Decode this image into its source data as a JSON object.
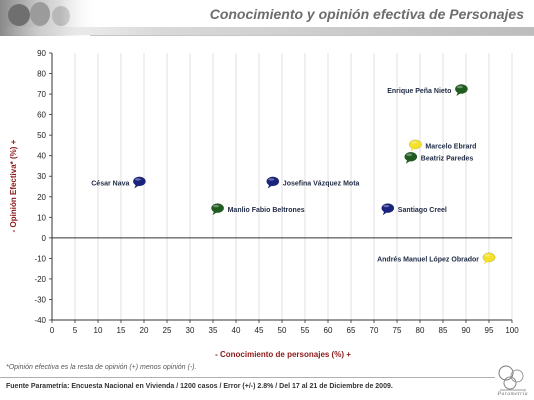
{
  "title": "Conocimiento y opinión efectiva de Personajes",
  "footnote": "*Opinión efectiva es la resta de opinión (+) menos opinión (-).",
  "source": "Fuente Parametría: Encuesta Nacional en Vivienda / 1200 casos / Error (+/-) 2.8% / Del 17 al 21 de Diciembre de 2009.",
  "logo_text": "Parametría",
  "colors": {
    "blue": "#1a237e",
    "green": "#1f5c1f",
    "yellow": "#f4e12a",
    "axis_label": "#8b1a1a",
    "grid": "#d4d4d4"
  },
  "chart_data": {
    "type": "scatter",
    "title": "Conocimiento y opinión efectiva de Personajes",
    "xlabel": "- Conocimiento de personajes (%) +",
    "ylabel": "- Opinión Efectiva* (%) +",
    "xlim": [
      0,
      100
    ],
    "ylim": [
      -40,
      90
    ],
    "xticks": [
      0,
      5,
      10,
      15,
      20,
      25,
      30,
      35,
      40,
      45,
      50,
      55,
      60,
      65,
      70,
      75,
      80,
      85,
      90,
      95,
      100
    ],
    "yticks": [
      -40,
      -30,
      -20,
      -10,
      0,
      10,
      20,
      30,
      40,
      50,
      60,
      70,
      80,
      90
    ],
    "grid": "vertical",
    "points": [
      {
        "label": "Enrique Peña Nieto",
        "x": 89,
        "y": 72,
        "color": "green",
        "label_side": "left"
      },
      {
        "label": "Marcelo Ebrard",
        "x": 79,
        "y": 45,
        "color": "yellow",
        "label_side": "right"
      },
      {
        "label": "Beatriz Paredes",
        "x": 78,
        "y": 39,
        "color": "green",
        "label_side": "right"
      },
      {
        "label": "César Nava",
        "x": 19,
        "y": 27,
        "color": "blue",
        "label_side": "left"
      },
      {
        "label": "Josefina Vázquez Mota",
        "x": 48,
        "y": 27,
        "color": "blue",
        "label_side": "right"
      },
      {
        "label": "Manlio Fabio Beltrones",
        "x": 36,
        "y": 14,
        "color": "green",
        "label_side": "right"
      },
      {
        "label": "Santiago Creel",
        "x": 73,
        "y": 14,
        "color": "blue",
        "label_side": "right"
      },
      {
        "label": "Andrés Manuel López Obrador",
        "x": 95,
        "y": -10,
        "color": "yellow",
        "label_side": "left"
      }
    ]
  }
}
